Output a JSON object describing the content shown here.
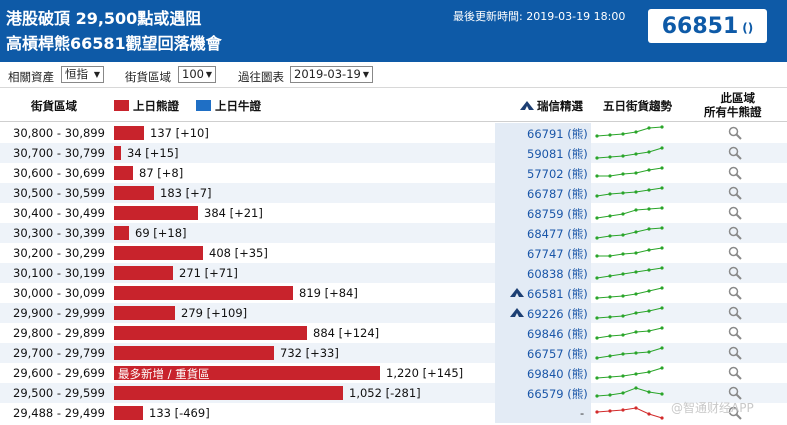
{
  "header": {
    "title_line1": "港股破頂 29,500點或遇阻",
    "title_line2": "高槓桿熊66581觀望回落機會",
    "update_label": "最後更新時間: 2019-03-19 18:00",
    "code": "66851",
    "code_paren": "()"
  },
  "controls": {
    "asset_label": "相關資產",
    "asset_value": "恒指",
    "range_label": "街貨區域",
    "range_value": "100",
    "history_label": "過往圖表",
    "history_value": "2019-03-19"
  },
  "columns": {
    "range": "街貨區域",
    "bear_legend": "上日熊證",
    "bull_legend": "上日牛證",
    "ubs": "瑞信精選",
    "trend": "五日街貨趨勢",
    "all_line1": "此區域",
    "all_line2": "所有牛熊證"
  },
  "colors": {
    "header_bg": "#0e5aa7",
    "bear": "#c8232c",
    "bull": "#1f6fc5",
    "trend_up": "#2aa52a",
    "trend_down": "#d22b2b"
  },
  "rows": [
    {
      "range": "30,800 - 30,899",
      "value": 137,
      "label": "137 [+10]",
      "ubs": "66791 (熊)",
      "icon": false,
      "trend": [
        2,
        2.5,
        3,
        4,
        6,
        6.5
      ],
      "down": false
    },
    {
      "range": "30,700 - 30,799",
      "value": 34,
      "label": "34 [+15]",
      "ubs": "59081 (熊)",
      "icon": false,
      "trend": [
        1,
        1.5,
        2,
        3,
        4,
        6
      ],
      "down": false
    },
    {
      "range": "30,600 - 30,699",
      "value": 87,
      "label": "87 [+8]",
      "ubs": "57702 (熊)",
      "icon": false,
      "trend": [
        2,
        2,
        3,
        3.5,
        5,
        6
      ],
      "down": false
    },
    {
      "range": "30,500 - 30,599",
      "value": 183,
      "label": "183 [+7]",
      "ubs": "66787 (熊)",
      "icon": false,
      "trend": [
        2,
        3,
        3.5,
        4,
        5,
        6
      ],
      "down": false
    },
    {
      "range": "30,400 - 30,499",
      "value": 384,
      "label": "384 [+21]",
      "ubs": "68759 (熊)",
      "icon": false,
      "trend": [
        1,
        2,
        3,
        5,
        5.5,
        6
      ],
      "down": false
    },
    {
      "range": "30,300 - 30,399",
      "value": 69,
      "label": "69 [+18]",
      "ubs": "68477 (熊)",
      "icon": false,
      "trend": [
        1,
        2,
        2.5,
        4,
        5.5,
        6
      ],
      "down": false
    },
    {
      "range": "30,200 - 30,299",
      "value": 408,
      "label": "408 [+35]",
      "ubs": "67747 (熊)",
      "icon": false,
      "trend": [
        2,
        2,
        3,
        3.5,
        5,
        6
      ],
      "down": false
    },
    {
      "range": "30,100 - 30,199",
      "value": 271,
      "label": "271 [+71]",
      "ubs": "60838 (熊)",
      "icon": false,
      "trend": [
        1,
        2,
        3,
        4,
        5,
        6
      ],
      "down": false
    },
    {
      "range": "30,000 - 30,099",
      "value": 819,
      "label": "819 [+84]",
      "ubs": "66581 (熊)",
      "icon": true,
      "trend": [
        1,
        1.5,
        2,
        3,
        4.5,
        6
      ],
      "down": false
    },
    {
      "range": "29,900 - 29,999",
      "value": 279,
      "label": "279 [+109]",
      "ubs": "69226 (熊)",
      "icon": true,
      "trend": [
        1,
        1.5,
        2,
        3.5,
        4.5,
        6
      ],
      "down": false
    },
    {
      "range": "29,800 - 29,899",
      "value": 884,
      "label": "884 [+124]",
      "ubs": "69846 (熊)",
      "icon": false,
      "trend": [
        1,
        2,
        2.5,
        4,
        4.5,
        6
      ],
      "down": false
    },
    {
      "range": "29,700 - 29,799",
      "value": 732,
      "label": "732 [+33]",
      "ubs": "66757 (熊)",
      "icon": false,
      "trend": [
        1,
        2,
        3,
        3.5,
        4,
        6
      ],
      "down": false
    },
    {
      "range": "29,600 - 29,699",
      "value": 1220,
      "label": "1,220 [+145]",
      "inner": "最多新增 / 重貨區",
      "ubs": "69840 (熊)",
      "icon": false,
      "trend": [
        1,
        1.5,
        2,
        3,
        4,
        6
      ],
      "down": false
    },
    {
      "range": "29,500 - 29,599",
      "value": 1052,
      "label": "1,052 [-281]",
      "ubs": "66579 (熊)",
      "icon": false,
      "trend": [
        2,
        2.5,
        3.5,
        6,
        4,
        3
      ],
      "down": false
    },
    {
      "range": "29,488 - 29,499",
      "value": 133,
      "label": "133 [-469]",
      "ubs": "-",
      "icon": false,
      "trend": [
        4,
        4.5,
        5,
        6,
        3,
        1
      ],
      "down": true
    }
  ],
  "watermark": "@智通财经APP"
}
